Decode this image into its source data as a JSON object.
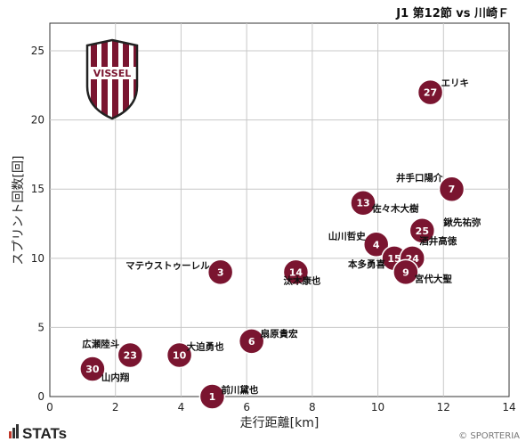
{
  "header": {
    "title": "J1 第12節 vs 川崎Ｆ"
  },
  "team": {
    "logo_text": "VISSEL",
    "color": "#7a1530"
  },
  "branding": {
    "stats_text": "STATs",
    "copyright": "© SPORTERIA"
  },
  "chart_data": {
    "type": "scatter",
    "xlabel": "走行距離[km]",
    "ylabel": "スプリント回数[回]",
    "xlim": [
      0,
      14
    ],
    "ylim": [
      0,
      27
    ],
    "xticks": [
      0,
      2,
      4,
      6,
      8,
      10,
      12,
      14
    ],
    "yticks": [
      0,
      5,
      10,
      15,
      20,
      25
    ],
    "grid": true,
    "marker_color": "#7a1530",
    "points": [
      {
        "number": "27",
        "name": "エリキ",
        "x": 11.6,
        "y": 22
      },
      {
        "number": "7",
        "name": "井手口陽介",
        "x": 12.25,
        "y": 15
      },
      {
        "number": "13",
        "name": "佐々木大樹",
        "x": 9.55,
        "y": 14
      },
      {
        "number": "25",
        "name": "鍬先祐弥",
        "x": 11.35,
        "y": 12
      },
      {
        "number": "4",
        "name": "山川哲史",
        "x": 9.95,
        "y": 11
      },
      {
        "number": "15",
        "name": "本多勇喜",
        "x": 10.5,
        "y": 10
      },
      {
        "number": "24",
        "name": "酒井高徳",
        "x": 11.05,
        "y": 10
      },
      {
        "number": "9",
        "name": "宮代大聖",
        "x": 10.85,
        "y": 9
      },
      {
        "number": "3",
        "name": "マテウストゥーレル",
        "x": 5.2,
        "y": 9
      },
      {
        "number": "14",
        "name": "汰木康也",
        "x": 7.5,
        "y": 9
      },
      {
        "number": "6",
        "name": "扇原貴宏",
        "x": 6.15,
        "y": 4
      },
      {
        "number": "10",
        "name": "大迫勇也",
        "x": 3.95,
        "y": 3
      },
      {
        "number": "23",
        "name": "広瀬陸斗",
        "x": 2.45,
        "y": 3
      },
      {
        "number": "30",
        "name": "山内翔",
        "x": 1.3,
        "y": 2
      },
      {
        "number": "1",
        "name": "前川黛也",
        "x": 4.95,
        "y": 0
      }
    ]
  }
}
